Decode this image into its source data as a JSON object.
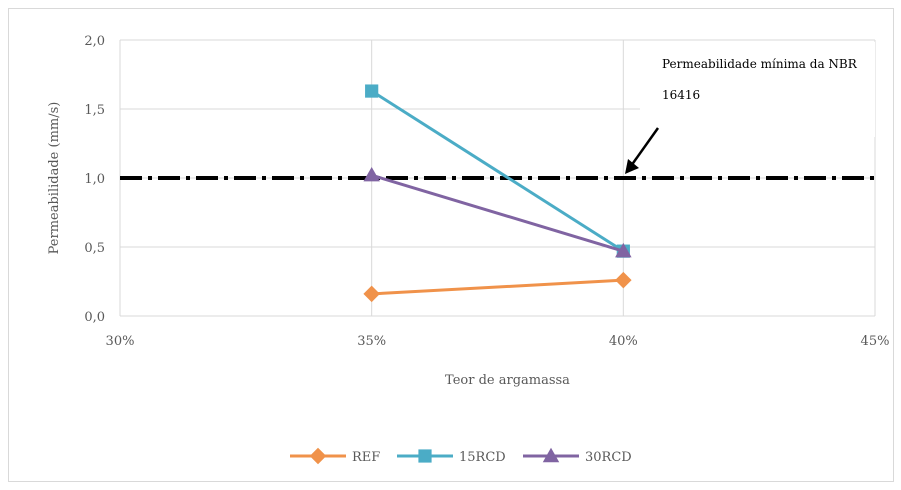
{
  "chart_data": {
    "type": "line",
    "x": [
      0.35,
      0.4
    ],
    "xlabel": "Teor de argamassa",
    "ylabel": "Permeabilidade (mm/s)",
    "xlim": [
      0.3,
      0.45
    ],
    "ylim": [
      0.0,
      2.0
    ],
    "x_ticks": [
      "30%",
      "35%",
      "40%",
      "45%"
    ],
    "y_ticks": [
      "0,0",
      "0,5",
      "1,0",
      "1,5",
      "2,0"
    ],
    "grid": "vertical and horizontal",
    "legend_position": "bottom",
    "series": [
      {
        "name": "REF",
        "values": [
          0.16,
          0.26
        ],
        "color": "#f0924a",
        "marker": "diamond"
      },
      {
        "name": "15RCD",
        "values": [
          1.63,
          0.47
        ],
        "color": "#4bacc6",
        "marker": "square"
      },
      {
        "name": "30RCD",
        "values": [
          1.02,
          0.47
        ],
        "color": "#8064a2",
        "marker": "triangle"
      }
    ],
    "reference_line": {
      "value": 1.0,
      "style": "dash-dot",
      "color": "#000000"
    },
    "annotation": {
      "line1": "Permeabilidade mínima da NBR",
      "line2": "16416"
    }
  }
}
